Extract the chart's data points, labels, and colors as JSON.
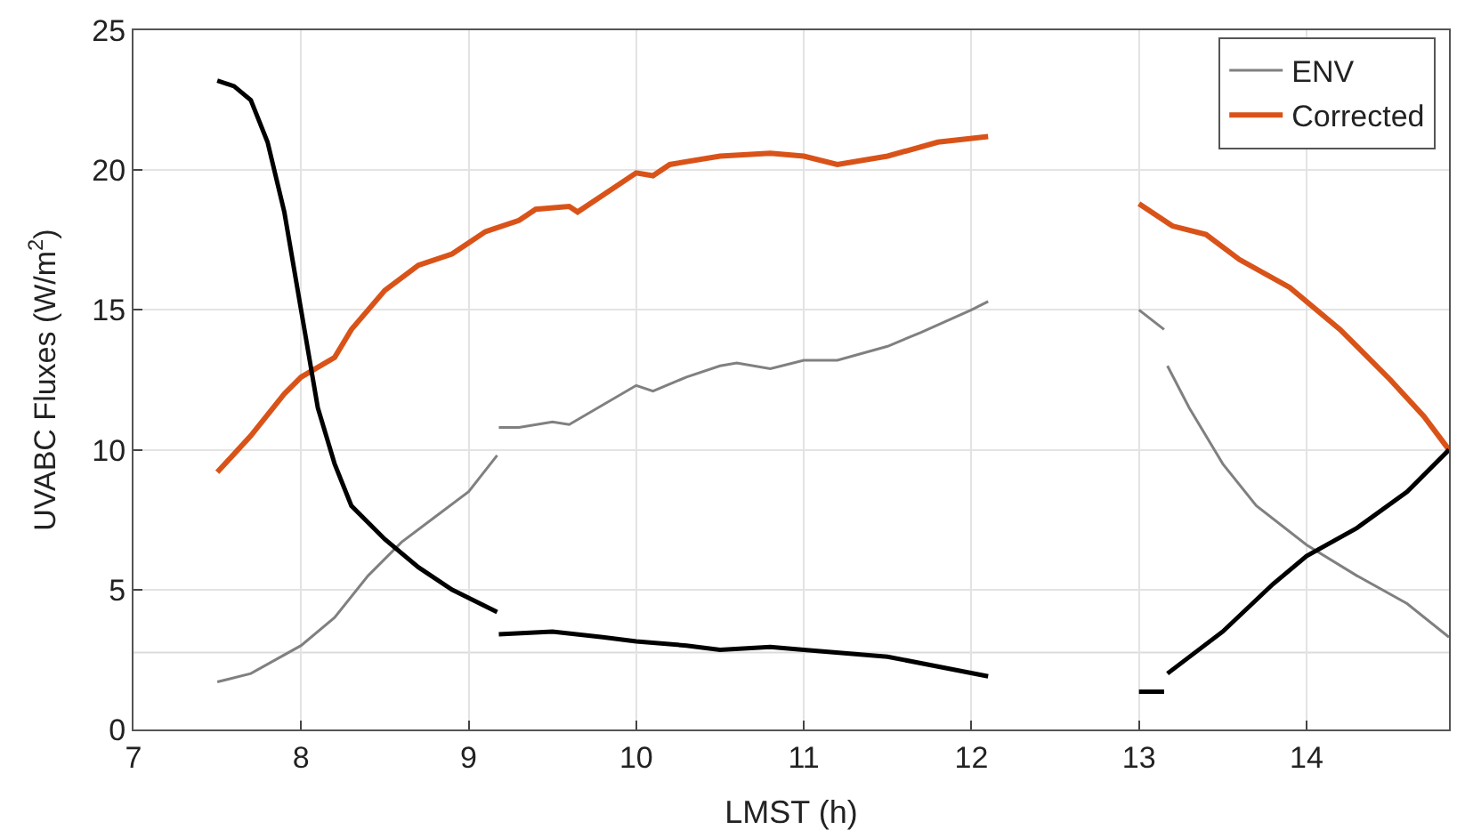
{
  "chart_data": {
    "type": "line",
    "xlabel": "LMST (h)",
    "ylabel": "UVABC Fluxes (W/m$^{2}$)",
    "xlim": [
      7,
      14.85
    ],
    "ylim": [
      0,
      25
    ],
    "xticks": [
      7,
      8,
      9,
      10,
      11,
      12,
      13,
      14
    ],
    "yticks": [
      0,
      5,
      10,
      15,
      20,
      25
    ],
    "grid": true,
    "legend": "top right",
    "ref_lines": [
      {
        "axis": "y",
        "value": 2.75,
        "color": "#dcdcdc"
      }
    ],
    "series": [
      {
        "name": "ENV",
        "color": "#808080",
        "x": [
          7.5,
          7.7,
          8.0,
          8.2,
          8.4,
          8.6,
          8.8,
          9.0,
          9.17,
          9.175,
          9.18,
          9.3,
          9.5,
          9.6,
          9.8,
          10.0,
          10.1,
          10.3,
          10.5,
          10.6,
          10.8,
          11.0,
          11.2,
          11.5,
          11.7,
          12.0,
          12.1,
          12.5,
          13.0,
          13.15,
          13.16,
          13.17,
          13.3,
          13.5,
          13.7,
          14.0,
          14.3,
          14.6,
          14.85
        ],
        "values": [
          1.7,
          2.0,
          3.0,
          4.0,
          5.5,
          6.7,
          7.6,
          8.5,
          9.8,
          null,
          10.8,
          10.8,
          11.0,
          10.9,
          11.6,
          12.3,
          12.1,
          12.6,
          13.0,
          13.1,
          12.9,
          13.2,
          13.2,
          13.7,
          14.2,
          15.0,
          15.3,
          null,
          15.0,
          14.3,
          null,
          13.0,
          11.5,
          9.5,
          8.0,
          6.6,
          5.5,
          4.5,
          3.3
        ]
      },
      {
        "name": "Corrected",
        "color": "#d95319",
        "x": [
          7.5,
          7.7,
          7.9,
          8.0,
          8.2,
          8.3,
          8.5,
          8.7,
          8.9,
          9.0,
          9.1,
          9.3,
          9.4,
          9.6,
          9.65,
          9.8,
          10.0,
          10.1,
          10.2,
          10.5,
          10.8,
          11.0,
          11.2,
          11.5,
          11.8,
          12.1,
          12.5,
          13.0,
          13.2,
          13.4,
          13.6,
          13.9,
          14.2,
          14.5,
          14.7,
          14.85
        ],
        "values": [
          9.2,
          10.5,
          12.0,
          12.6,
          13.3,
          14.3,
          15.7,
          16.6,
          17.0,
          17.4,
          17.8,
          18.2,
          18.6,
          18.7,
          18.5,
          19.1,
          19.9,
          19.8,
          20.2,
          20.5,
          20.6,
          20.5,
          20.2,
          20.5,
          21.0,
          21.2,
          null,
          18.8,
          18.0,
          17.7,
          16.8,
          15.8,
          14.3,
          12.5,
          11.2,
          10.0
        ]
      },
      {
        "color": "#000000",
        "x": [
          7.5,
          7.6,
          7.7,
          7.8,
          7.9,
          8.0,
          8.1,
          8.2,
          8.3,
          8.5,
          8.7,
          8.9,
          9.17,
          9.175,
          9.18,
          9.5,
          9.8,
          10.0,
          10.3,
          10.5,
          10.8,
          11.0,
          11.5,
          12.1,
          12.5,
          13.0,
          13.15,
          13.16,
          13.17,
          13.5,
          13.8,
          14.0,
          14.3,
          14.6,
          14.85
        ],
        "values": [
          23.2,
          23.0,
          22.5,
          21.0,
          18.5,
          15.0,
          11.5,
          9.5,
          8.0,
          6.8,
          5.8,
          5.0,
          4.2,
          null,
          3.4,
          3.5,
          3.3,
          3.15,
          3.0,
          2.85,
          2.95,
          2.85,
          2.6,
          1.9,
          null,
          1.35,
          1.35,
          null,
          2.0,
          3.5,
          5.2,
          6.2,
          7.2,
          8.5,
          10.0
        ]
      }
    ]
  }
}
